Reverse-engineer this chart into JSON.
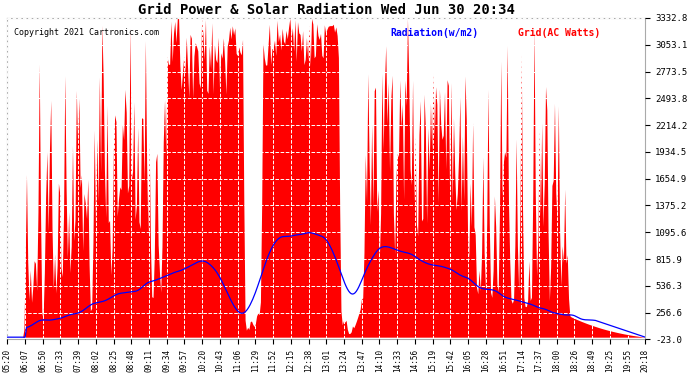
{
  "title": "Grid Power & Solar Radiation Wed Jun 30 20:34",
  "copyright": "Copyright 2021 Cartronics.com",
  "legend_radiation": "Radiation(w/m2)",
  "legend_grid": "Grid(AC Watts)",
  "yticks": [
    3332.8,
    3053.1,
    2773.5,
    2493.8,
    2214.2,
    1934.5,
    1654.9,
    1375.2,
    1095.6,
    815.9,
    536.3,
    256.6,
    -23.0
  ],
  "ymin": -23.0,
  "ymax": 3332.8,
  "x_labels": [
    "05:20",
    "06:07",
    "06:50",
    "07:33",
    "07:39",
    "08:02",
    "08:25",
    "08:48",
    "09:11",
    "09:34",
    "09:57",
    "10:20",
    "10:43",
    "11:06",
    "11:29",
    "11:52",
    "12:15",
    "12:38",
    "13:01",
    "13:24",
    "13:47",
    "14:10",
    "14:33",
    "14:56",
    "15:19",
    "15:42",
    "16:05",
    "16:28",
    "16:51",
    "17:14",
    "17:37",
    "18:00",
    "18:26",
    "18:49",
    "19:25",
    "19:55",
    "20:18"
  ],
  "background_color": "#ffffff",
  "plot_bg_color": "#ffffff",
  "grid_color": "#cccccc",
  "red_fill_color": "#ff0000",
  "blue_line_color": "#0000ff",
  "title_color": "#000000",
  "copyright_color": "#000000",
  "radiation_label_color": "#0000ff",
  "grid_label_color": "#ff0000"
}
